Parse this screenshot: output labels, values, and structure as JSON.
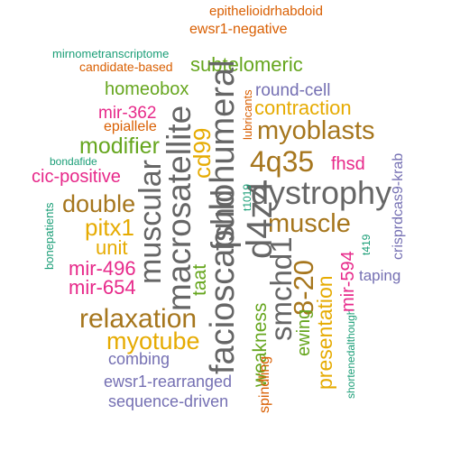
{
  "words": [
    {
      "text": "epithelioidrhabdoid",
      "color": "#d95f02"
    },
    {
      "text": "ewsr1-negative",
      "color": "#d95f02"
    },
    {
      "text": "mirnometranscriptome",
      "color": "#1b9e77"
    },
    {
      "text": "candidate-based",
      "color": "#d95f02"
    },
    {
      "text": "subtelomeric",
      "color": "#66a61e"
    },
    {
      "text": "homeobox",
      "color": "#66a61e"
    },
    {
      "text": "round-cell",
      "color": "#7570b3"
    },
    {
      "text": "contraction",
      "color": "#e6ab02"
    },
    {
      "text": "mir-362",
      "color": "#e7298a"
    },
    {
      "text": "epiallele",
      "color": "#d95f02"
    },
    {
      "text": "myoblasts",
      "color": "#a6761d"
    },
    {
      "text": "modifier",
      "color": "#66a61e"
    },
    {
      "text": "bondafide",
      "color": "#1b9e77"
    },
    {
      "text": "4q35",
      "color": "#a6761d"
    },
    {
      "text": "cic-positive",
      "color": "#e7298a"
    },
    {
      "text": "fhsd",
      "color": "#e7298a"
    },
    {
      "text": "double",
      "color": "#a6761d"
    },
    {
      "text": "dystrophy",
      "color": "#666666"
    },
    {
      "text": "pitx1",
      "color": "#e6ab02"
    },
    {
      "text": "muscle",
      "color": "#a6761d"
    },
    {
      "text": "unit",
      "color": "#e6ab02"
    },
    {
      "text": "mir-496",
      "color": "#e7298a"
    },
    {
      "text": "mir-654",
      "color": "#e7298a"
    },
    {
      "text": "relaxation",
      "color": "#a6761d"
    },
    {
      "text": "myotube",
      "color": "#e6ab02"
    },
    {
      "text": "combing",
      "color": "#7570b3"
    },
    {
      "text": "ewsr1-rearranged",
      "color": "#7570b3"
    },
    {
      "text": "sequence-driven",
      "color": "#7570b3"
    },
    {
      "text": "taping",
      "color": "#7570b3"
    },
    {
      "text": "muscular",
      "color": "#666666"
    },
    {
      "text": "macrosatellite",
      "color": "#666666"
    },
    {
      "text": "facioscapulohumeral",
      "color": "#666666"
    },
    {
      "text": "fshd",
      "color": "#666666"
    },
    {
      "text": "cd99",
      "color": "#e6ab02"
    },
    {
      "text": "d4z4",
      "color": "#666666"
    },
    {
      "text": "smchd1",
      "color": "#666666"
    },
    {
      "text": "8-20",
      "color": "#a6761d"
    },
    {
      "text": "taat",
      "color": "#66a61e"
    },
    {
      "text": "weakness",
      "color": "#66a61e"
    },
    {
      "text": "spindling",
      "color": "#d95f02"
    },
    {
      "text": "ewing",
      "color": "#66a61e"
    },
    {
      "text": "presentation",
      "color": "#e6ab02"
    },
    {
      "text": "shortenedalthough",
      "color": "#1b9e77"
    },
    {
      "text": "mir-594",
      "color": "#e7298a"
    },
    {
      "text": "t1019",
      "color": "#1b9e77"
    },
    {
      "text": "lubricants",
      "color": "#d95f02"
    },
    {
      "text": "t419",
      "color": "#1b9e77"
    },
    {
      "text": "crisprdcas9-krab",
      "color": "#7570b3"
    },
    {
      "text": "bonepatients",
      "color": "#1b9e77"
    }
  ]
}
